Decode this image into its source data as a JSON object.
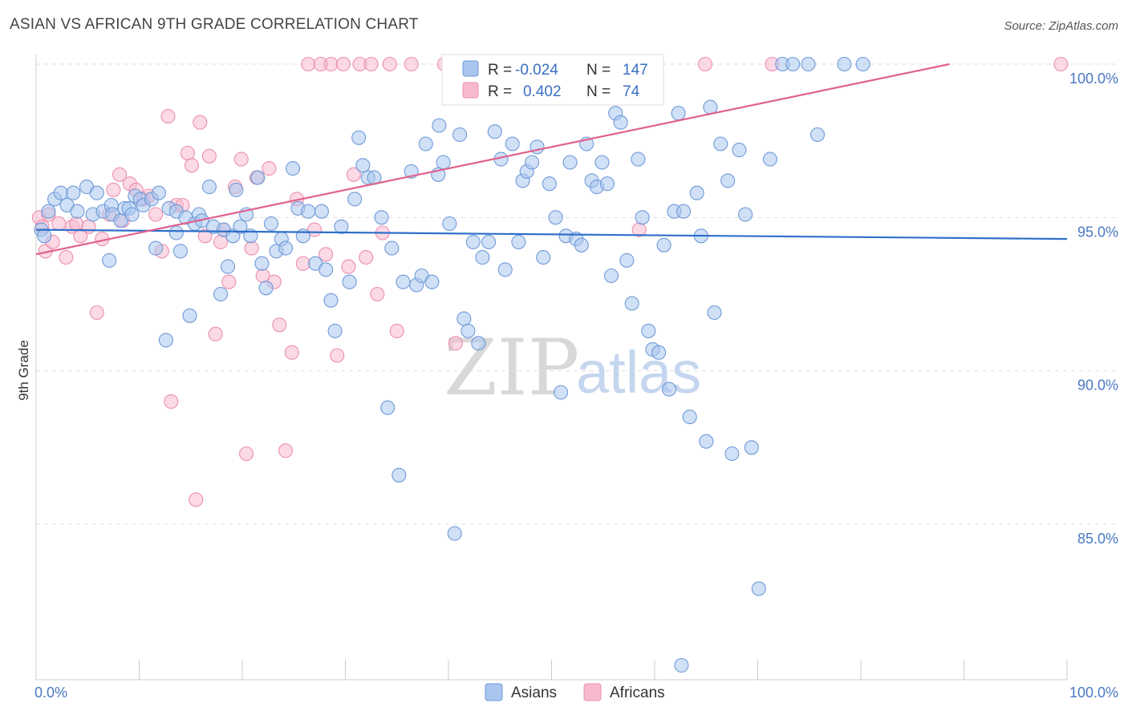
{
  "title": "ASIAN VS AFRICAN 9TH GRADE CORRELATION CHART",
  "source": "Source: ZipAtlas.com",
  "watermark": {
    "zip": "ZIP",
    "atlas": "atlas"
  },
  "colors": {
    "asian_fill": "#a9c6ef",
    "asian_stroke": "#6f9ad8",
    "asian_line": "#2f6fc9",
    "african_fill": "#f7b9cf",
    "african_stroke": "#eb8fb0",
    "african_line": "#e0628e",
    "grid": "#dddddd",
    "axis_text": "#4a78c2"
  },
  "legend": {
    "rows": [
      {
        "r_label": "R =",
        "r_value": "-0.024",
        "n_label": "N =",
        "n_value": "147"
      },
      {
        "r_label": "R =",
        "r_value": "0.402",
        "n_label": "N =",
        "n_value": "74"
      }
    ]
  },
  "chart_data": {
    "type": "scatter",
    "title": "ASIAN VS AFRICAN 9TH GRADE CORRELATION CHART",
    "xlabel": "",
    "ylabel": "9th Grade",
    "xlim": [
      0,
      100
    ],
    "ylim": [
      80,
      100.5
    ],
    "x_tick_labels": [
      "0.0%",
      "100.0%"
    ],
    "y_ticks": [
      85,
      90,
      95,
      100
    ],
    "y_tick_labels": [
      "85.0%",
      "90.0%",
      "95.0%",
      "100.0%"
    ],
    "grid": true,
    "legend_position": "top-center",
    "series": [
      {
        "name": "Asians",
        "r": -0.024,
        "n": 147,
        "trend": {
          "x": [
            0,
            100
          ],
          "y": [
            94.6,
            94.3
          ]
        },
        "points": [
          [
            0.5,
            94.6
          ],
          [
            0.8,
            94.4
          ],
          [
            1.2,
            95.2
          ],
          [
            1.8,
            95.6
          ],
          [
            2.4,
            95.8
          ],
          [
            3.0,
            95.4
          ],
          [
            3.6,
            95.8
          ],
          [
            4.0,
            95.2
          ],
          [
            4.9,
            96.0
          ],
          [
            5.9,
            95.8
          ],
          [
            5.5,
            95.1
          ],
          [
            6.5,
            95.2
          ],
          [
            7.1,
            93.6
          ],
          [
            7.3,
            95.4
          ],
          [
            7.4,
            95.1
          ],
          [
            8.2,
            94.9
          ],
          [
            8.6,
            95.3
          ],
          [
            9.0,
            95.3
          ],
          [
            9.3,
            95.1
          ],
          [
            9.6,
            95.7
          ],
          [
            10.1,
            95.6
          ],
          [
            10.4,
            95.4
          ],
          [
            11.2,
            95.6
          ],
          [
            11.6,
            94.0
          ],
          [
            11.9,
            95.8
          ],
          [
            12.6,
            91.0
          ],
          [
            12.9,
            95.3
          ],
          [
            13.6,
            94.5
          ],
          [
            14.0,
            93.9
          ],
          [
            13.6,
            95.2
          ],
          [
            14.5,
            95.0
          ],
          [
            14.9,
            91.8
          ],
          [
            15.4,
            94.8
          ],
          [
            15.8,
            95.1
          ],
          [
            16.1,
            94.9
          ],
          [
            16.8,
            96.0
          ],
          [
            17.2,
            94.7
          ],
          [
            17.9,
            92.5
          ],
          [
            18.2,
            94.6
          ],
          [
            18.6,
            93.4
          ],
          [
            19.1,
            94.4
          ],
          [
            19.4,
            95.9
          ],
          [
            19.8,
            94.7
          ],
          [
            20.4,
            95.1
          ],
          [
            20.8,
            94.4
          ],
          [
            21.5,
            96.3
          ],
          [
            21.9,
            93.5
          ],
          [
            22.3,
            92.7
          ],
          [
            22.8,
            94.8
          ],
          [
            23.3,
            93.9
          ],
          [
            23.8,
            94.3
          ],
          [
            24.2,
            94.0
          ],
          [
            24.9,
            96.6
          ],
          [
            25.4,
            95.3
          ],
          [
            25.9,
            94.4
          ],
          [
            26.4,
            95.2
          ],
          [
            27.1,
            93.5
          ],
          [
            27.7,
            95.2
          ],
          [
            28.1,
            93.3
          ],
          [
            28.6,
            92.3
          ],
          [
            29.0,
            91.3
          ],
          [
            29.6,
            94.7
          ],
          [
            30.4,
            92.9
          ],
          [
            30.9,
            95.6
          ],
          [
            31.3,
            97.6
          ],
          [
            31.7,
            96.7
          ],
          [
            32.2,
            96.3
          ],
          [
            32.8,
            96.3
          ],
          [
            33.5,
            95.0
          ],
          [
            34.1,
            88.8
          ],
          [
            34.5,
            94.0
          ],
          [
            35.2,
            86.6
          ],
          [
            35.6,
            92.9
          ],
          [
            36.4,
            96.5
          ],
          [
            36.9,
            92.8
          ],
          [
            37.4,
            93.1
          ],
          [
            37.8,
            97.4
          ],
          [
            38.4,
            92.9
          ],
          [
            39.0,
            96.4
          ],
          [
            39.5,
            96.8
          ],
          [
            39.1,
            98.0
          ],
          [
            40.1,
            94.8
          ],
          [
            40.6,
            84.7
          ],
          [
            41.1,
            97.7
          ],
          [
            41.5,
            91.7
          ],
          [
            41.9,
            91.3
          ],
          [
            42.4,
            94.2
          ],
          [
            42.9,
            90.9
          ],
          [
            43.3,
            93.7
          ],
          [
            43.9,
            94.2
          ],
          [
            44.5,
            97.8
          ],
          [
            45.1,
            96.9
          ],
          [
            45.5,
            93.3
          ],
          [
            46.2,
            97.4
          ],
          [
            46.8,
            94.2
          ],
          [
            47.2,
            96.2
          ],
          [
            47.6,
            96.5
          ],
          [
            48.1,
            96.8
          ],
          [
            48.6,
            97.3
          ],
          [
            49.2,
            93.7
          ],
          [
            49.8,
            96.1
          ],
          [
            50.4,
            95.0
          ],
          [
            50.9,
            89.3
          ],
          [
            51.4,
            94.4
          ],
          [
            51.8,
            96.8
          ],
          [
            52.4,
            94.3
          ],
          [
            52.9,
            94.1
          ],
          [
            53.4,
            97.4
          ],
          [
            53.9,
            96.2
          ],
          [
            54.4,
            96.0
          ],
          [
            54.9,
            96.8
          ],
          [
            55.4,
            96.1
          ],
          [
            55.8,
            93.1
          ],
          [
            56.2,
            98.4
          ],
          [
            56.7,
            98.1
          ],
          [
            57.3,
            93.6
          ],
          [
            57.8,
            92.2
          ],
          [
            58.4,
            96.9
          ],
          [
            58.8,
            95.0
          ],
          [
            59.4,
            91.3
          ],
          [
            59.8,
            90.7
          ],
          [
            60.4,
            90.6
          ],
          [
            60.9,
            94.1
          ],
          [
            61.4,
            89.4
          ],
          [
            61.9,
            95.2
          ],
          [
            62.3,
            98.4
          ],
          [
            62.8,
            95.2
          ],
          [
            63.4,
            88.5
          ],
          [
            64.1,
            95.8
          ],
          [
            64.5,
            94.4
          ],
          [
            65.0,
            87.7
          ],
          [
            65.4,
            98.6
          ],
          [
            65.8,
            91.9
          ],
          [
            66.4,
            97.4
          ],
          [
            67.1,
            96.2
          ],
          [
            67.5,
            87.3
          ],
          [
            68.2,
            97.2
          ],
          [
            68.8,
            95.1
          ],
          [
            69.4,
            87.5
          ],
          [
            70.1,
            82.9
          ],
          [
            71.2,
            96.9
          ],
          [
            72.4,
            100.0
          ],
          [
            73.4,
            100.0
          ],
          [
            74.9,
            100.0
          ],
          [
            75.8,
            97.7
          ],
          [
            78.4,
            100.0
          ],
          [
            80.2,
            100.0
          ],
          [
            62.6,
            80.4
          ]
        ]
      },
      {
        "name": "Africans",
        "r": 0.402,
        "n": 74,
        "trend": {
          "x": [
            0,
            88.6
          ],
          "y": [
            93.8,
            100.0
          ]
        },
        "points": [
          [
            0.3,
            95.0
          ],
          [
            0.6,
            94.7
          ],
          [
            0.9,
            93.9
          ],
          [
            1.2,
            95.1
          ],
          [
            1.6,
            94.2
          ],
          [
            2.2,
            94.8
          ],
          [
            2.9,
            93.7
          ],
          [
            3.5,
            94.7
          ],
          [
            3.9,
            94.8
          ],
          [
            4.3,
            94.4
          ],
          [
            5.1,
            94.7
          ],
          [
            5.9,
            91.9
          ],
          [
            6.4,
            94.3
          ],
          [
            7.1,
            95.1
          ],
          [
            7.5,
            95.9
          ],
          [
            8.1,
            96.4
          ],
          [
            8.4,
            94.9
          ],
          [
            9.1,
            96.1
          ],
          [
            9.7,
            95.9
          ],
          [
            10.4,
            95.6
          ],
          [
            10.9,
            95.7
          ],
          [
            11.6,
            95.1
          ],
          [
            12.2,
            93.9
          ],
          [
            12.8,
            98.3
          ],
          [
            13.1,
            89.0
          ],
          [
            13.6,
            95.4
          ],
          [
            14.2,
            95.4
          ],
          [
            14.7,
            97.1
          ],
          [
            15.1,
            96.7
          ],
          [
            15.5,
            85.8
          ],
          [
            15.9,
            98.1
          ],
          [
            16.4,
            94.4
          ],
          [
            16.8,
            97.0
          ],
          [
            17.4,
            91.2
          ],
          [
            17.9,
            94.2
          ],
          [
            18.2,
            94.6
          ],
          [
            18.7,
            92.9
          ],
          [
            19.3,
            96.0
          ],
          [
            19.9,
            96.9
          ],
          [
            20.4,
            87.3
          ],
          [
            20.9,
            94.0
          ],
          [
            21.4,
            96.3
          ],
          [
            22.0,
            93.1
          ],
          [
            22.6,
            96.6
          ],
          [
            23.1,
            92.9
          ],
          [
            23.6,
            91.5
          ],
          [
            24.2,
            87.4
          ],
          [
            24.8,
            90.6
          ],
          [
            25.3,
            95.6
          ],
          [
            25.9,
            93.5
          ],
          [
            26.4,
            100.0
          ],
          [
            27.0,
            94.6
          ],
          [
            27.6,
            100.0
          ],
          [
            28.1,
            93.8
          ],
          [
            28.6,
            100.0
          ],
          [
            29.2,
            90.5
          ],
          [
            29.8,
            100.0
          ],
          [
            30.3,
            93.4
          ],
          [
            30.8,
            96.4
          ],
          [
            31.4,
            100.0
          ],
          [
            32.0,
            93.7
          ],
          [
            32.5,
            100.0
          ],
          [
            33.1,
            92.5
          ],
          [
            33.6,
            94.5
          ],
          [
            34.3,
            100.0
          ],
          [
            35.0,
            91.3
          ],
          [
            36.4,
            100.0
          ],
          [
            39.6,
            100.0
          ],
          [
            40.7,
            90.9
          ],
          [
            46.5,
            100.0
          ],
          [
            58.5,
            94.6
          ],
          [
            64.9,
            100.0
          ],
          [
            71.4,
            100.0
          ],
          [
            99.4,
            100.0
          ]
        ]
      }
    ]
  }
}
